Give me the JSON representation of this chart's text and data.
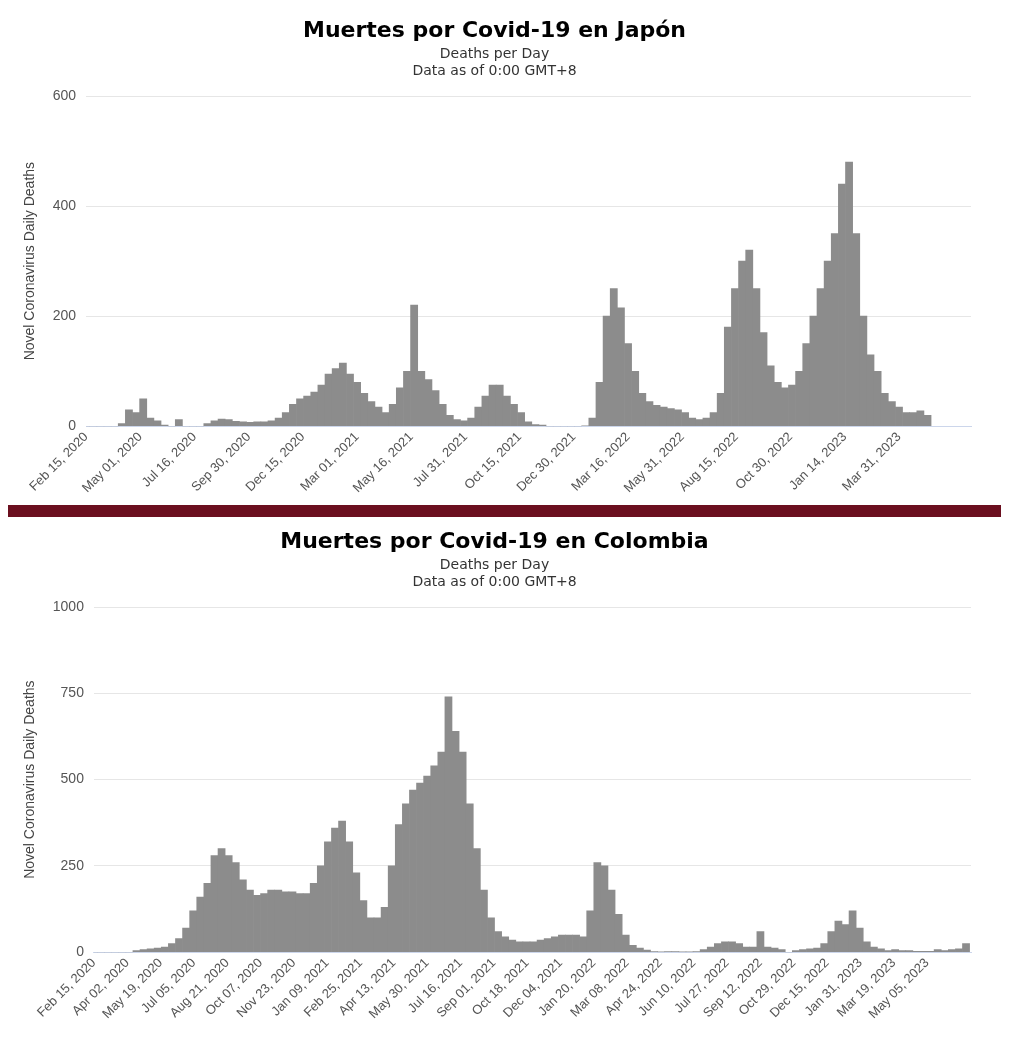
{
  "chart_data": [
    {
      "type": "bar",
      "title": "Muertes por Covid-19 en Japón",
      "subtitle": "Deaths per Day\nData as of 0:00 GMT+8",
      "ylabel": "Novel Coronavirus Daily Deaths",
      "color": "#8c8c8c",
      "grid": "y",
      "x": [
        "2020-02-15",
        "2020-02-25",
        "2020-03-06",
        "2020-03-16",
        "2020-03-26",
        "2020-04-05",
        "2020-04-15",
        "2020-04-25",
        "2020-05-05",
        "2020-05-15",
        "2020-05-25",
        "2020-06-04",
        "2020-06-14",
        "2020-06-24",
        "2020-07-04",
        "2020-07-14",
        "2020-07-24",
        "2020-08-03",
        "2020-08-13",
        "2020-08-23",
        "2020-09-02",
        "2020-09-12",
        "2020-09-22",
        "2020-10-02",
        "2020-10-12",
        "2020-10-22",
        "2020-11-01",
        "2020-11-11",
        "2020-11-21",
        "2020-12-01",
        "2020-12-11",
        "2020-12-21",
        "2020-12-31",
        "2021-01-10",
        "2021-01-20",
        "2021-01-30",
        "2021-02-09",
        "2021-02-19",
        "2021-03-01",
        "2021-03-11",
        "2021-03-21",
        "2021-03-31",
        "2021-04-10",
        "2021-04-20",
        "2021-04-30",
        "2021-05-10",
        "2021-05-20",
        "2021-05-30",
        "2021-06-09",
        "2021-06-19",
        "2021-06-29",
        "2021-07-09",
        "2021-07-19",
        "2021-07-29",
        "2021-08-08",
        "2021-08-18",
        "2021-08-28",
        "2021-09-07",
        "2021-09-17",
        "2021-09-27",
        "2021-10-07",
        "2021-10-17",
        "2021-10-27",
        "2021-11-06",
        "2021-11-16",
        "2021-11-26",
        "2021-12-06",
        "2021-12-16",
        "2021-12-26",
        "2022-01-05",
        "2022-01-15",
        "2022-01-25",
        "2022-02-04",
        "2022-02-14",
        "2022-02-24",
        "2022-03-06",
        "2022-03-16",
        "2022-03-26",
        "2022-04-05",
        "2022-04-15",
        "2022-04-25",
        "2022-05-05",
        "2022-05-15",
        "2022-05-25",
        "2022-06-04",
        "2022-06-14",
        "2022-06-24",
        "2022-07-04",
        "2022-07-14",
        "2022-07-24",
        "2022-08-03",
        "2022-08-13",
        "2022-08-23",
        "2022-09-02",
        "2022-09-12",
        "2022-09-22",
        "2022-10-02",
        "2022-10-12",
        "2022-10-22",
        "2022-11-01",
        "2022-11-11",
        "2022-11-21",
        "2022-12-01",
        "2022-12-11",
        "2022-12-21",
        "2022-12-31",
        "2023-01-10",
        "2023-01-20",
        "2023-01-30",
        "2023-02-09",
        "2023-02-19",
        "2023-03-01",
        "2023-03-11",
        "2023-03-21",
        "2023-03-31",
        "2023-04-10",
        "2023-04-20",
        "2023-04-30",
        "2023-05-10"
      ],
      "values": [
        0,
        0,
        0,
        0,
        0,
        5,
        30,
        25,
        50,
        15,
        10,
        2,
        0,
        12,
        0,
        0,
        0,
        5,
        10,
        13,
        12,
        9,
        8,
        7,
        8,
        8,
        10,
        15,
        25,
        40,
        50,
        55,
        62,
        75,
        95,
        105,
        115,
        95,
        80,
        60,
        45,
        35,
        25,
        40,
        70,
        100,
        220,
        100,
        85,
        65,
        40,
        20,
        12,
        10,
        15,
        35,
        55,
        75,
        75,
        55,
        40,
        25,
        8,
        3,
        2,
        0,
        0,
        0,
        0,
        0,
        1,
        15,
        80,
        200,
        250,
        215,
        150,
        100,
        60,
        45,
        38,
        35,
        32,
        30,
        25,
        15,
        12,
        15,
        25,
        60,
        180,
        250,
        300,
        320,
        250,
        170,
        110,
        80,
        70,
        75,
        100,
        150,
        200,
        250,
        300,
        350,
        440,
        480,
        350,
        200,
        130,
        100,
        60,
        45,
        35,
        25,
        25,
        28,
        20
      ],
      "xlim": [
        "2020-02-15",
        "2023-07-10"
      ],
      "xticks": [
        {
          "value": "2020-02-15",
          "label": "Feb 15, 2020"
        },
        {
          "value": "2020-05-01",
          "label": "May 01, 2020"
        },
        {
          "value": "2020-07-16",
          "label": "Jul 16, 2020"
        },
        {
          "value": "2020-09-30",
          "label": "Sep 30, 2020"
        },
        {
          "value": "2020-12-15",
          "label": "Dec 15, 2020"
        },
        {
          "value": "2021-03-01",
          "label": "Mar 01, 2021"
        },
        {
          "value": "2021-05-16",
          "label": "May 16, 2021"
        },
        {
          "value": "2021-07-31",
          "label": "Jul 31, 2021"
        },
        {
          "value": "2021-10-15",
          "label": "Oct 15, 2021"
        },
        {
          "value": "2021-12-30",
          "label": "Dec 30, 2021"
        },
        {
          "value": "2022-03-16",
          "label": "Mar 16, 2022"
        },
        {
          "value": "2022-05-31",
          "label": "May 31, 2022"
        },
        {
          "value": "2022-08-15",
          "label": "Aug 15, 2022"
        },
        {
          "value": "2022-10-30",
          "label": "Oct 30, 2022"
        },
        {
          "value": "2023-01-14",
          "label": "Jan 14, 2023"
        },
        {
          "value": "2023-03-31",
          "label": "Mar 31, 2023"
        }
      ],
      "ylim": [
        0,
        600
      ],
      "yticks": [
        0,
        200,
        400,
        600
      ]
    },
    {
      "type": "bar",
      "title": "Muertes por Covid-19 en Colombia",
      "subtitle": "Deaths per Day\nData as of 0:00 GMT+8",
      "ylabel": "Novel Coronavirus Daily Deaths",
      "color": "#8c8c8c",
      "grid": "y",
      "x": [
        "2020-02-15",
        "2020-02-25",
        "2020-03-06",
        "2020-03-16",
        "2020-03-26",
        "2020-04-05",
        "2020-04-15",
        "2020-04-25",
        "2020-05-05",
        "2020-05-15",
        "2020-05-25",
        "2020-06-04",
        "2020-06-14",
        "2020-06-24",
        "2020-07-04",
        "2020-07-14",
        "2020-07-24",
        "2020-08-03",
        "2020-08-13",
        "2020-08-23",
        "2020-09-02",
        "2020-09-12",
        "2020-09-22",
        "2020-10-02",
        "2020-10-12",
        "2020-10-22",
        "2020-11-01",
        "2020-11-11",
        "2020-11-21",
        "2020-12-01",
        "2020-12-11",
        "2020-12-21",
        "2020-12-31",
        "2021-01-10",
        "2021-01-20",
        "2021-01-30",
        "2021-02-09",
        "2021-02-19",
        "2021-03-01",
        "2021-03-11",
        "2021-03-21",
        "2021-03-31",
        "2021-04-10",
        "2021-04-20",
        "2021-04-30",
        "2021-05-10",
        "2021-05-20",
        "2021-05-30",
        "2021-06-09",
        "2021-06-19",
        "2021-06-29",
        "2021-07-09",
        "2021-07-19",
        "2021-07-29",
        "2021-08-08",
        "2021-08-18",
        "2021-08-28",
        "2021-09-07",
        "2021-09-17",
        "2021-09-27",
        "2021-10-07",
        "2021-10-17",
        "2021-10-27",
        "2021-11-06",
        "2021-11-16",
        "2021-11-26",
        "2021-12-06",
        "2021-12-16",
        "2021-12-26",
        "2022-01-05",
        "2022-01-15",
        "2022-01-25",
        "2022-02-04",
        "2022-02-14",
        "2022-02-24",
        "2022-03-06",
        "2022-03-16",
        "2022-03-26",
        "2022-04-05",
        "2022-04-15",
        "2022-04-25",
        "2022-05-05",
        "2022-05-15",
        "2022-05-25",
        "2022-06-04",
        "2022-06-14",
        "2022-06-24",
        "2022-07-04",
        "2022-07-14",
        "2022-07-24",
        "2022-08-03",
        "2022-08-13",
        "2022-08-23",
        "2022-09-02",
        "2022-09-12",
        "2022-09-22",
        "2022-10-02",
        "2022-10-12",
        "2022-10-22",
        "2022-11-01",
        "2022-11-11",
        "2022-11-21",
        "2022-12-01",
        "2022-12-11",
        "2022-12-21",
        "2022-12-31",
        "2023-01-10",
        "2023-01-20",
        "2023-01-30",
        "2023-02-09",
        "2023-02-19",
        "2023-03-01",
        "2023-03-11",
        "2023-03-21",
        "2023-03-31",
        "2023-04-10",
        "2023-04-20",
        "2023-04-30",
        "2023-05-10",
        "2023-05-20",
        "2023-05-30",
        "2023-06-09",
        "2023-06-19",
        "2023-06-29"
      ],
      "values": [
        0,
        0,
        0,
        0,
        0,
        0,
        5,
        8,
        10,
        12,
        15,
        25,
        40,
        70,
        120,
        160,
        200,
        280,
        300,
        280,
        260,
        210,
        180,
        165,
        170,
        180,
        180,
        175,
        175,
        170,
        170,
        200,
        250,
        320,
        360,
        380,
        320,
        230,
        150,
        100,
        100,
        130,
        250,
        370,
        430,
        470,
        490,
        510,
        540,
        580,
        740,
        640,
        580,
        430,
        300,
        180,
        100,
        60,
        45,
        35,
        30,
        30,
        30,
        35,
        40,
        45,
        50,
        50,
        50,
        45,
        120,
        260,
        250,
        180,
        110,
        50,
        20,
        12,
        6,
        2,
        1,
        2,
        2,
        1,
        1,
        2,
        8,
        15,
        25,
        30,
        30,
        25,
        15,
        15,
        60,
        15,
        12,
        8,
        0,
        5,
        8,
        10,
        12,
        25,
        60,
        90,
        80,
        120,
        70,
        30,
        15,
        10,
        5,
        8,
        5,
        5,
        3,
        3,
        3,
        8,
        5,
        8,
        10,
        25
      ],
      "xlim": [
        "2020-02-15",
        "2023-07-06"
      ],
      "xticks": [
        {
          "value": "2020-02-15",
          "label": "Feb 15, 2020"
        },
        {
          "value": "2020-04-02",
          "label": "Apr 02, 2020"
        },
        {
          "value": "2020-05-19",
          "label": "May 19, 2020"
        },
        {
          "value": "2020-07-05",
          "label": "Jul 05, 2020"
        },
        {
          "value": "2020-08-21",
          "label": "Aug 21, 2020"
        },
        {
          "value": "2020-10-07",
          "label": "Oct 07, 2020"
        },
        {
          "value": "2020-11-23",
          "label": "Nov 23, 2020"
        },
        {
          "value": "2021-01-09",
          "label": "Jan 09, 2021"
        },
        {
          "value": "2021-02-25",
          "label": "Feb 25, 2021"
        },
        {
          "value": "2021-04-13",
          "label": "Apr 13, 2021"
        },
        {
          "value": "2021-05-30",
          "label": "May 30, 2021"
        },
        {
          "value": "2021-07-16",
          "label": "Jul 16, 2021"
        },
        {
          "value": "2021-09-01",
          "label": "Sep 01, 2021"
        },
        {
          "value": "2021-10-18",
          "label": "Oct 18, 2021"
        },
        {
          "value": "2021-12-04",
          "label": "Dec 04, 2021"
        },
        {
          "value": "2022-01-20",
          "label": "Jan 20, 2022"
        },
        {
          "value": "2022-03-08",
          "label": "Mar 08, 2022"
        },
        {
          "value": "2022-04-24",
          "label": "Apr 24, 2022"
        },
        {
          "value": "2022-06-10",
          "label": "Jun 10, 2022"
        },
        {
          "value": "2022-07-27",
          "label": "Jul 27, 2022"
        },
        {
          "value": "2022-09-12",
          "label": "Sep 12, 2022"
        },
        {
          "value": "2022-10-29",
          "label": "Oct 29, 2022"
        },
        {
          "value": "2022-12-15",
          "label": "Dec 15, 2022"
        },
        {
          "value": "2023-01-31",
          "label": "Jan 31, 2023"
        },
        {
          "value": "2023-03-19",
          "label": "Mar 19, 2023"
        },
        {
          "value": "2023-05-05",
          "label": "May 05, 2023"
        }
      ],
      "ylim": [
        0,
        1000
      ],
      "yticks": [
        0,
        250,
        500,
        750,
        1000
      ]
    }
  ]
}
